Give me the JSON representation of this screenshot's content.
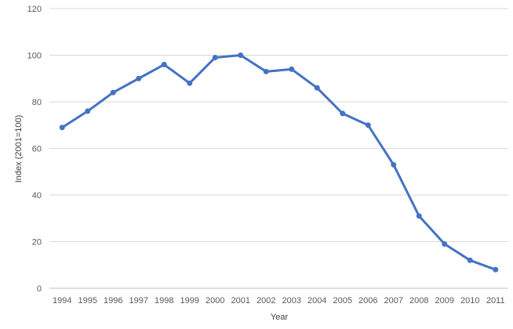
{
  "chart_data": {
    "type": "line",
    "title": "",
    "xlabel": "Year",
    "ylabel": "Index (2001=100)",
    "ylim": [
      0,
      120
    ],
    "yticks": [
      0,
      20,
      40,
      60,
      80,
      100,
      120
    ],
    "grid": true,
    "legend": "none",
    "categories": [
      "1994",
      "1995",
      "1996",
      "1997",
      "1998",
      "1999",
      "2000",
      "2001",
      "2002",
      "2003",
      "2004",
      "2005",
      "2006",
      "2007",
      "2008",
      "2009",
      "2010",
      "2011"
    ],
    "series": [
      {
        "color": "#4472c4",
        "values": [
          69,
          76,
          84,
          90,
          96,
          88,
          99,
          100,
          93,
          94,
          86,
          75,
          70,
          53,
          31,
          19,
          12,
          8
        ]
      }
    ]
  }
}
